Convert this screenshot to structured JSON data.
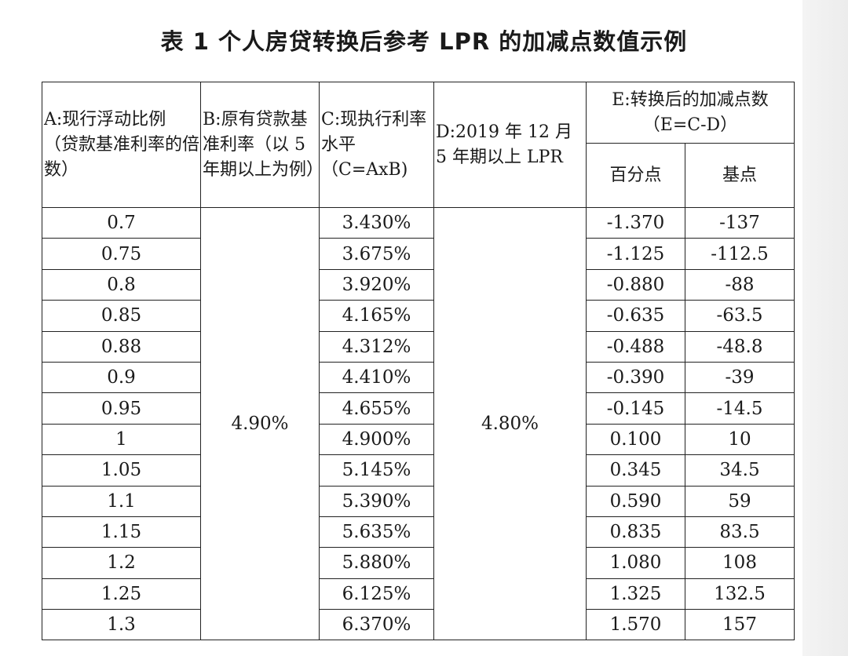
{
  "title": "表 1  个人房贷转换后参考 LPR 的加减点数值示例",
  "headers": {
    "a": "A:现行浮动比例（贷款基准利率的倍数）",
    "b": "B:原有贷款基准利率（以 5 年期以上为例）",
    "c": "C:现执行利率水平（C=AxB)",
    "d": "D:2019 年 12 月 5 年期以上 LPR",
    "e": "E:转换后的加减点数（E=C-D）",
    "e_pct": "百分点",
    "e_bp": "基点"
  },
  "b_value": "4.90%",
  "d_value": "4.80%",
  "rows": [
    {
      "a": "0.7",
      "c": "3.430%",
      "pct": "-1.370",
      "bp": "-137"
    },
    {
      "a": "0.75",
      "c": "3.675%",
      "pct": "-1.125",
      "bp": "-112.5"
    },
    {
      "a": "0.8",
      "c": "3.920%",
      "pct": "-0.880",
      "bp": "-88"
    },
    {
      "a": "0.85",
      "c": "4.165%",
      "pct": "-0.635",
      "bp": "-63.5"
    },
    {
      "a": "0.88",
      "c": "4.312%",
      "pct": "-0.488",
      "bp": "-48.8"
    },
    {
      "a": "0.9",
      "c": "4.410%",
      "pct": "-0.390",
      "bp": "-39"
    },
    {
      "a": "0.95",
      "c": "4.655%",
      "pct": "-0.145",
      "bp": "-14.5"
    },
    {
      "a": "1",
      "c": "4.900%",
      "pct": "0.100",
      "bp": "10"
    },
    {
      "a": "1.05",
      "c": "5.145%",
      "pct": "0.345",
      "bp": "34.5"
    },
    {
      "a": "1.1",
      "c": "5.390%",
      "pct": "0.590",
      "bp": "59"
    },
    {
      "a": "1.15",
      "c": "5.635%",
      "pct": "0.835",
      "bp": "83.5"
    },
    {
      "a": "1.2",
      "c": "5.880%",
      "pct": "1.080",
      "bp": "108"
    },
    {
      "a": "1.25",
      "c": "6.125%",
      "pct": "1.325",
      "bp": "132.5"
    },
    {
      "a": "1.3",
      "c": "6.370%",
      "pct": "1.570",
      "bp": "157"
    }
  ]
}
